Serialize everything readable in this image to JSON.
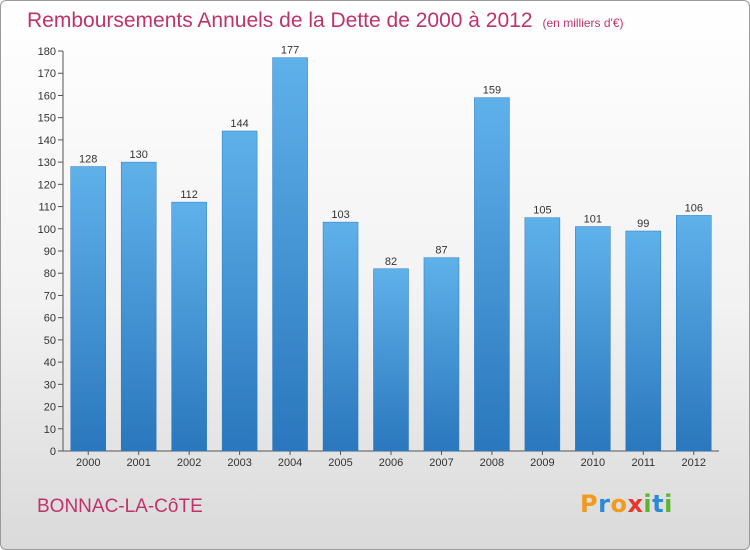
{
  "title": "Remboursements Annuels de la Dette de 2000 à 2012",
  "unit_note": "(en milliers d'€)",
  "commune": "BONNAC-LA-CôTE",
  "logo": {
    "letters": [
      "P",
      "r",
      "o",
      "x",
      "i",
      "t",
      "i"
    ],
    "colors": [
      "#f39a1b",
      "#2a8ad6",
      "#f39a1b",
      "#e8362a",
      "#5bb531",
      "#2a8ad6",
      "#5bb531"
    ]
  },
  "colors": {
    "title": "#c0336a",
    "bar_top": "#5fb1ea",
    "bar_bottom": "#2a77bd"
  },
  "chart_data": {
    "type": "bar",
    "title": "Remboursements Annuels de la Dette de 2000 à 2012",
    "subtitle": "(en milliers d'€)",
    "xlabel": "",
    "ylabel": "",
    "categories": [
      "2000",
      "2001",
      "2002",
      "2003",
      "2004",
      "2005",
      "2006",
      "2007",
      "2008",
      "2009",
      "2010",
      "2011",
      "2012"
    ],
    "values": [
      128,
      130,
      112,
      144,
      177,
      103,
      82,
      87,
      159,
      105,
      101,
      99,
      106
    ],
    "ylim": [
      0,
      180
    ],
    "yticks": [
      0,
      10,
      20,
      30,
      40,
      50,
      60,
      70,
      80,
      90,
      100,
      110,
      120,
      130,
      140,
      150,
      160,
      170,
      180
    ],
    "grid": false,
    "legend": "none"
  }
}
